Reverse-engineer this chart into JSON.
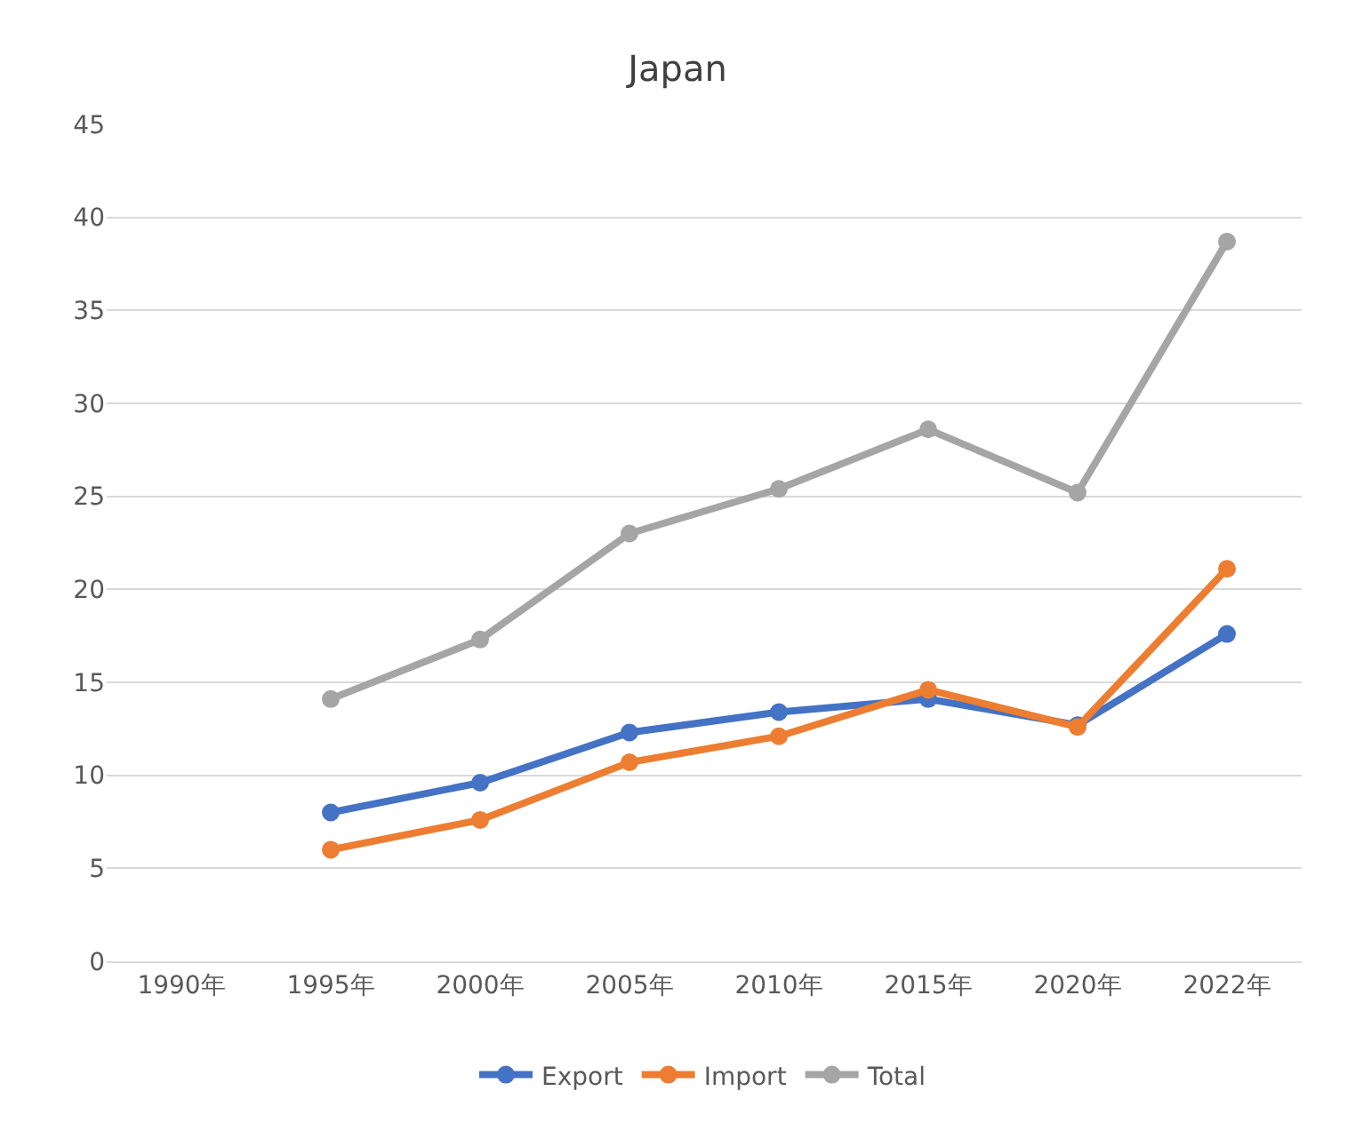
{
  "chart_data": {
    "type": "line",
    "title": "Japan",
    "categories": [
      "1990年",
      "1995年",
      "2000年",
      "2005年",
      "2010年",
      "2015年",
      "2020年",
      "2022年"
    ],
    "series": [
      {
        "name": "Export",
        "color": "#4472c4",
        "values": [
          null,
          8.0,
          9.6,
          12.3,
          13.4,
          14.1,
          12.7,
          17.6
        ]
      },
      {
        "name": "Import",
        "color": "#ed7d31",
        "values": [
          null,
          6.0,
          7.6,
          10.7,
          12.1,
          14.6,
          12.6,
          21.1
        ]
      },
      {
        "name": "Total",
        "color": "#a5a5a5",
        "values": [
          null,
          14.1,
          17.3,
          23.0,
          25.4,
          28.6,
          25.2,
          38.7
        ]
      }
    ],
    "ylim": [
      0,
      45
    ],
    "yticks": [
      0,
      5,
      10,
      15,
      20,
      25,
      30,
      35,
      40,
      45
    ],
    "grid": "y",
    "legend": "bottom",
    "marker": "circle",
    "line_style": "solid"
  }
}
